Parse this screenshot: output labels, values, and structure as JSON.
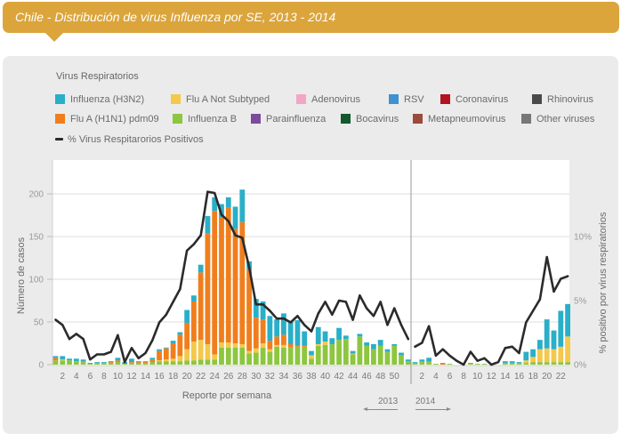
{
  "header": {
    "title": "Chile - Distribución de virus Influenza por SE, 2013 - 2014"
  },
  "legend": {
    "title": "Virus Respiratorios",
    "items": [
      {
        "label": "Influenza (H3N2)",
        "color": "#2aafc8"
      },
      {
        "label": "Flu A Not Subtyped",
        "color": "#f4c84a"
      },
      {
        "label": "Adenovirus",
        "color": "#f2a6c4"
      },
      {
        "label": "RSV",
        "color": "#3e92d0"
      },
      {
        "label": "Coronavirus",
        "color": "#b3121f"
      },
      {
        "label": "Rhinovirus",
        "color": "#4a4a4a"
      },
      {
        "label": "Flu A (H1N1) pdm09",
        "color": "#f07e1c"
      },
      {
        "label": "Influenza B",
        "color": "#8dc63f"
      },
      {
        "label": "Parainfluenza",
        "color": "#7b4b9c"
      },
      {
        "label": "Bocavirus",
        "color": "#12592c"
      },
      {
        "label": "Metapneumovirus",
        "color": "#9b4b3c"
      },
      {
        "label": "Other viruses",
        "color": "#777777"
      }
    ],
    "line_label": "% Virus Respitarorios Positivos"
  },
  "chart_data": {
    "type": "bar",
    "stacked": true,
    "title": "Chile - Distribución de virus Influenza por SE, 2013 - 2014",
    "xlabel": "Reporte por semana",
    "ylabel": "Número de casos",
    "y2label": "% positivo por virus respiratorios",
    "ylim": [
      0,
      240
    ],
    "y2lim": [
      0,
      16
    ],
    "yticks": [
      0,
      50,
      100,
      150,
      200
    ],
    "yticklabels": [
      "0",
      "50",
      "100",
      "150",
      "200"
    ],
    "y2ticks": [
      0,
      5,
      10
    ],
    "y2ticklabels": [
      "0%",
      "5%",
      "10%"
    ],
    "grid": true,
    "legend_position": "top",
    "periods": [
      {
        "year": "2013",
        "arrow": "left",
        "weeks": [
          1,
          2,
          3,
          4,
          5,
          6,
          7,
          8,
          9,
          10,
          11,
          12,
          13,
          14,
          15,
          16,
          17,
          18,
          19,
          20,
          21,
          22,
          23,
          24,
          25,
          26,
          27,
          28,
          29,
          30,
          31,
          32,
          33,
          34,
          35,
          36,
          37,
          38,
          39,
          40,
          41,
          42,
          43,
          44,
          45,
          46,
          47,
          48,
          49,
          50,
          51,
          52
        ],
        "xticklabels": [
          "2",
          "4",
          "6",
          "8",
          "10",
          "12",
          "14",
          "16",
          "18",
          "20",
          "22",
          "24",
          "26",
          "28",
          "30",
          "32",
          "34",
          "36",
          "38",
          "40",
          "42",
          "44",
          "46",
          "48",
          "50"
        ],
        "series": [
          {
            "name": "Influenza B",
            "color": "#8dc63f",
            "values": [
              5,
              5,
              5,
              4,
              3,
              1,
              2,
              2,
              2,
              3,
              1,
              2,
              2,
              2,
              3,
              4,
              4,
              4,
              4,
              5,
              5,
              6,
              6,
              6,
              20,
              20,
              20,
              20,
              13,
              14,
              20,
              15,
              21,
              20,
              20,
              21,
              21,
              7,
              22,
              23,
              24,
              29,
              30,
              12,
              33,
              22,
              18,
              22,
              15,
              22,
              11,
              4
            ]
          },
          {
            "name": "Flu A Not Subtyped",
            "color": "#f4c84a",
            "values": [
              0,
              1,
              0,
              0,
              0,
              0,
              0,
              0,
              0,
              0,
              0,
              0,
              0,
              0,
              0,
              1,
              2,
              3,
              6,
              13,
              22,
              23,
              18,
              6,
              6,
              6,
              5,
              4,
              3,
              5,
              5,
              3,
              2,
              3,
              0,
              0,
              0,
              4,
              2,
              4,
              0,
              0,
              0,
              1,
              0,
              0,
              0,
              0,
              0,
              0,
              0,
              0
            ]
          },
          {
            "name": "Flu A (H1N1) pdm09",
            "color": "#f07e1c",
            "values": [
              3,
              0,
              0,
              0,
              1,
              0,
              0,
              0,
              1,
              2,
              0,
              1,
              1,
              2,
              3,
              11,
              13,
              18,
              25,
              31,
              47,
              79,
              130,
              168,
              146,
              158,
              134,
              143,
              95,
              36,
              28,
              10,
              10,
              12,
              4,
              1,
              1,
              0,
              0,
              0,
              0,
              0,
              0,
              0,
              0,
              0,
              0,
              0,
              0,
              0,
              0,
              0
            ]
          },
          {
            "name": "Influenza (H3N2)",
            "color": "#2aafc8",
            "values": [
              2,
              4,
              2,
              3,
              2,
              1,
              1,
              1,
              1,
              3,
              2,
              4,
              1,
              0,
              2,
              2,
              1,
              3,
              3,
              15,
              7,
              9,
              20,
              16,
              16,
              12,
              26,
              38,
              10,
              22,
              21,
              29,
              20,
              25,
              26,
              30,
              17,
              5,
              20,
              12,
              7,
              14,
              4,
              3,
              3,
              4,
              6,
              7,
              3,
              2,
              3,
              2
            ]
          }
        ],
        "line": {
          "name": "% Virus Respitarorios Positivos",
          "color": "#2b2b2b",
          "values": [
            3.5,
            3.1,
            2.0,
            2.4,
            2.0,
            0.4,
            0.8,
            0.8,
            1.0,
            2.3,
            0.2,
            1.3,
            0.5,
            0.9,
            1.9,
            3.3,
            3.9,
            4.9,
            5.9,
            8.9,
            9.4,
            10.1,
            13.5,
            13.4,
            11.7,
            11.2,
            10.1,
            9.9,
            7.6,
            4.7,
            4.7,
            4.2,
            3.6,
            3.6,
            3.3,
            3.8,
            3.1,
            2.6,
            4.0,
            4.9,
            3.9,
            5.0,
            4.9,
            3.5,
            5.4,
            4.4,
            3.8,
            4.9,
            3.1,
            4.4,
            3.1,
            2.0
          ]
        }
      },
      {
        "year": "2014",
        "arrow": "right",
        "weeks": [
          1,
          2,
          3,
          4,
          5,
          6,
          7,
          8,
          9,
          10,
          11,
          12,
          13,
          14,
          15,
          16,
          17,
          18,
          19,
          20,
          21,
          22,
          23
        ],
        "xticklabels": [
          "2",
          "4",
          "6",
          "8",
          "10",
          "12",
          "14",
          "16",
          "18",
          "20",
          "22"
        ],
        "series": [
          {
            "name": "Influenza B",
            "color": "#8dc63f",
            "values": [
              2,
              3,
              3,
              1,
              0,
              1,
              0,
              0,
              1,
              1,
              1,
              0,
              0,
              2,
              2,
              2,
              2,
              3,
              3,
              3,
              3,
              3,
              3
            ]
          },
          {
            "name": "Flu A Not Subtyped",
            "color": "#f4c84a",
            "values": [
              0,
              0,
              0,
              0,
              0,
              0,
              0,
              0,
              0,
              0,
              0,
              0,
              0,
              0,
              0,
              0,
              3,
              6,
              15,
              16,
              15,
              18,
              30
            ]
          },
          {
            "name": "Flu A (H1N1) pdm09",
            "color": "#f07e1c",
            "values": [
              0,
              1,
              1,
              0,
              2,
              0,
              0,
              0,
              1,
              0,
              0,
              0,
              0,
              0,
              0,
              0,
              0,
              0,
              0,
              0,
              0,
              0,
              0
            ]
          },
          {
            "name": "Influenza (H3N2)",
            "color": "#2aafc8",
            "values": [
              1,
              2,
              4,
              0,
              0,
              0,
              0,
              0,
              0,
              0,
              0,
              0,
              0,
              2,
              2,
              1,
              10,
              9,
              11,
              34,
              22,
              42,
              38
            ]
          }
        ],
        "line": {
          "name": "% Virus Respitarorios Positivos",
          "color": "#2b2b2b",
          "values": [
            1.4,
            1.7,
            3.0,
            0.7,
            1.2,
            0.7,
            0.3,
            0.0,
            1.0,
            0.3,
            0.5,
            0.0,
            0.2,
            1.3,
            1.4,
            0.9,
            3.3,
            4.2,
            5.1,
            8.4,
            5.7,
            6.7,
            6.9
          ]
        }
      }
    ]
  }
}
